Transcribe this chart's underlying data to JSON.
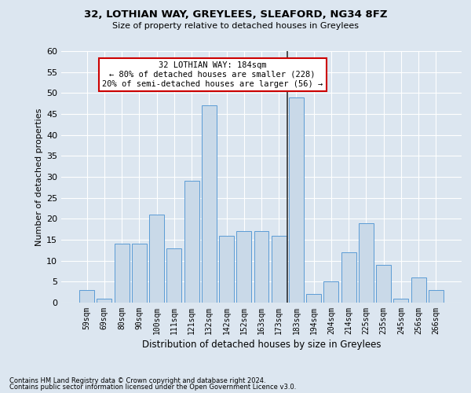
{
  "title1": "32, LOTHIAN WAY, GREYLEES, SLEAFORD, NG34 8FZ",
  "title2": "Size of property relative to detached houses in Greylees",
  "xlabel": "Distribution of detached houses by size in Greylees",
  "ylabel": "Number of detached properties",
  "bar_labels": [
    "59sqm",
    "69sqm",
    "80sqm",
    "90sqm",
    "100sqm",
    "111sqm",
    "121sqm",
    "132sqm",
    "142sqm",
    "152sqm",
    "163sqm",
    "173sqm",
    "183sqm",
    "194sqm",
    "204sqm",
    "214sqm",
    "225sqm",
    "235sqm",
    "245sqm",
    "256sqm",
    "266sqm"
  ],
  "bar_values": [
    3,
    1,
    14,
    14,
    21,
    13,
    29,
    47,
    16,
    17,
    17,
    16,
    49,
    2,
    5,
    12,
    19,
    9,
    1,
    6,
    3
  ],
  "bar_color": "#c9d9e8",
  "bar_edge_color": "#5b9bd5",
  "grid_color": "#ffffff",
  "bg_color": "#dce6f0",
  "annotation_line1": "32 LOTHIAN WAY: 184sqm",
  "annotation_line2": "← 80% of detached houses are smaller (228)",
  "annotation_line3": "20% of semi-detached houses are larger (56) →",
  "vline_x_index": 12,
  "vline_color": "#333333",
  "annotation_box_edge": "#cc0000",
  "ylim": [
    0,
    60
  ],
  "yticks": [
    0,
    5,
    10,
    15,
    20,
    25,
    30,
    35,
    40,
    45,
    50,
    55,
    60
  ],
  "footnote1": "Contains HM Land Registry data © Crown copyright and database right 2024.",
  "footnote2": "Contains public sector information licensed under the Open Government Licence v3.0."
}
